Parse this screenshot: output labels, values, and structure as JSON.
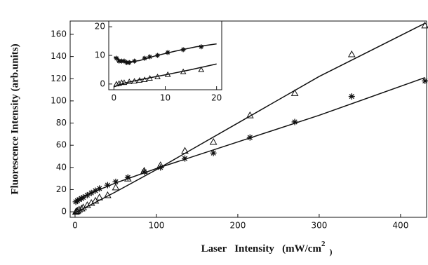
{
  "chart_data": [
    {
      "type": "scatter-fit",
      "y_label": "Fluorescence Intensity (arb.units)",
      "x_label": {
        "text": "Laser   Intensity   (mW/cm",
        "superscript": "2",
        "suffix": ")"
      },
      "xlim": [
        -6,
        432
      ],
      "ylim": [
        -5,
        172
      ],
      "xticks": [
        0,
        100,
        200,
        300,
        400
      ],
      "yticks": [
        0,
        20,
        40,
        60,
        80,
        100,
        120,
        140,
        160
      ],
      "series": [
        {
          "marker": "triangle",
          "color": "#111",
          "x": [
            1,
            2,
            3,
            5,
            8,
            10,
            15,
            20,
            25,
            30,
            40,
            50,
            65,
            85,
            105,
            135,
            170,
            215,
            270,
            340,
            430
          ],
          "values": [
            0,
            0.5,
            1,
            2,
            3,
            4,
            6,
            8,
            10,
            13,
            15,
            22,
            30,
            37,
            42,
            55,
            63,
            87,
            107,
            142,
            168
          ]
        },
        {
          "marker": "asterisk",
          "color": "#111",
          "x": [
            1,
            3,
            5,
            8,
            10,
            15,
            20,
            25,
            30,
            40,
            50,
            65,
            85,
            105,
            135,
            170,
            215,
            270,
            340,
            430
          ],
          "values": [
            9,
            10,
            11,
            12,
            13,
            15,
            17,
            19,
            21,
            24,
            27,
            31,
            36,
            40,
            48,
            53,
            67,
            81,
            104,
            118
          ]
        }
      ],
      "fits": [
        {
          "color": "#111",
          "x": [
            0,
            50,
            100,
            200,
            300,
            430
          ],
          "values": [
            -1,
            18,
            38,
            80,
            122,
            170
          ]
        },
        {
          "color": "#111",
          "x": [
            0,
            20,
            50,
            100,
            200,
            300,
            430
          ],
          "values": [
            10,
            17,
            26,
            39,
            63,
            87,
            121
          ]
        }
      ]
    },
    {
      "type": "scatter-fit",
      "xlim": [
        -1,
        21
      ],
      "ylim": [
        -2,
        22
      ],
      "xticks": [
        0,
        10,
        20
      ],
      "yticks": [
        0,
        10,
        20
      ],
      "series": [
        {
          "marker": "triangle",
          "color": "#111",
          "x": [
            0.5,
            1,
            1.5,
            2,
            3,
            4,
            5,
            6,
            7,
            8.5,
            10.5,
            13.5,
            17
          ],
          "values": [
            0,
            0.2,
            0.5,
            0.5,
            0.8,
            1,
            1.3,
            1.5,
            2,
            2.5,
            3.3,
            4.3,
            5
          ]
        },
        {
          "marker": "asterisk",
          "color": "#111",
          "x": [
            0.5,
            1,
            1.5,
            2,
            2.5,
            3,
            4,
            6,
            7,
            8.5,
            10.5,
            13.5,
            17
          ],
          "values": [
            9,
            8,
            8,
            8,
            7.5,
            7.5,
            8,
            9,
            9.5,
            10,
            11,
            12,
            13
          ]
        }
      ],
      "fits": [
        {
          "color": "#111",
          "x": [
            0,
            1,
            2,
            3,
            5,
            8,
            12,
            16,
            20
          ],
          "values": [
            9.5,
            8.5,
            8,
            7.7,
            8.2,
            9.8,
            11.5,
            13,
            14
          ]
        },
        {
          "color": "#111",
          "x": [
            0,
            2,
            5,
            10,
            15,
            20
          ],
          "values": [
            -1,
            0.3,
            1.5,
            3.2,
            5,
            7
          ]
        }
      ]
    }
  ]
}
